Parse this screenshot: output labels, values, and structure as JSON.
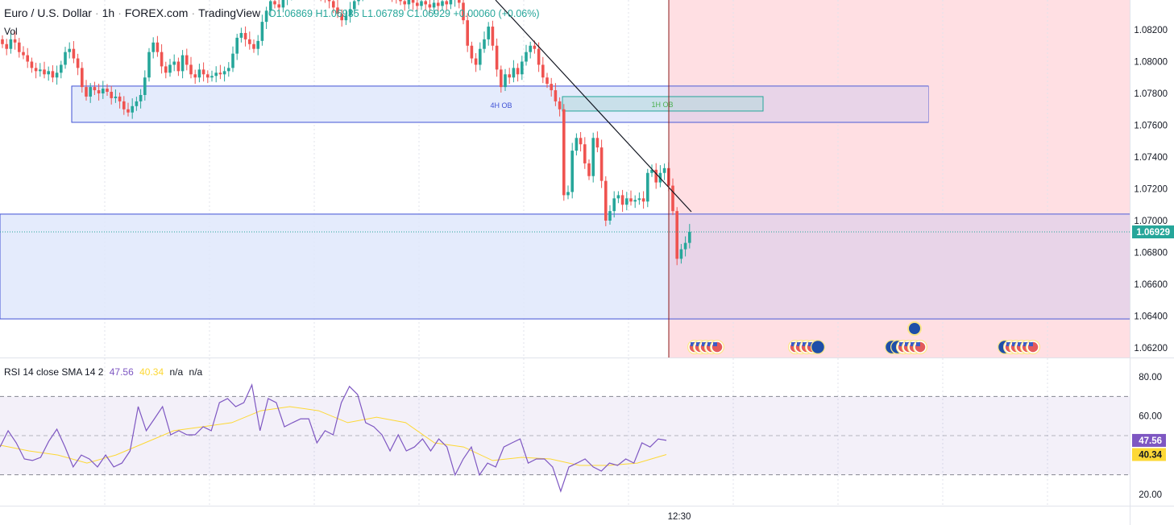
{
  "header": {
    "symbol": "Euro / U.S. Dollar",
    "interval": "1h",
    "exchange": "FOREX.com",
    "source": "TradingView",
    "ohlc": {
      "open": "O1.06869",
      "high": "H1.06935",
      "low": "L1.06789",
      "close": "C1.06929",
      "change": "+0.00060 (+0.06%)"
    },
    "volume_label": "Vol"
  },
  "rsi_legend": {
    "title": "RSI 14 close SMA 14 2",
    "rsi": "47.56",
    "sma": "40.34",
    "na1": "n/a",
    "na2": "n/a"
  },
  "colors": {
    "up": "#26a69a",
    "down": "#ef5350",
    "zone_fill": "#dfe8fb",
    "zone_border": "#3f51d5",
    "pink": "#ffdfe3",
    "rsi": "#7e57c2",
    "sma": "#fdd835",
    "ob1h_border": "#26a69a",
    "vline": "#8b1a1a"
  },
  "chart_data": [
    {
      "type": "candlestick",
      "note_series": "closes",
      "closes": [
        1.0811,
        1.0808,
        1.0814,
        1.0812,
        1.0806,
        1.0804,
        1.08,
        1.0796,
        1.0794,
        1.0795,
        1.0792,
        1.0794,
        1.079,
        1.0793,
        1.0798,
        1.0806,
        1.0808,
        1.0802,
        1.0796,
        1.0784,
        1.0778,
        1.0784,
        1.0782,
        1.078,
        1.0783,
        1.0781,
        1.0777,
        1.0778,
        1.0775,
        1.077,
        1.0768,
        1.0772,
        1.0775,
        1.0779,
        1.079,
        1.0806,
        1.0812,
        1.0806,
        1.0797,
        1.0793,
        1.0798,
        1.08,
        1.0794,
        1.0804,
        1.0798,
        1.0792,
        1.079,
        1.0795,
        1.0792,
        1.079,
        1.0791,
        1.0793,
        1.0792,
        1.0794,
        1.0796,
        1.0805,
        1.0815,
        1.0818,
        1.0814,
        1.0811,
        1.0808,
        1.0813,
        1.0825,
        1.0832,
        1.0838,
        1.0836,
        1.0834,
        1.084,
        1.0842,
        1.0844,
        1.0846,
        1.0843,
        1.0845,
        1.0848,
        1.0846,
        1.0844,
        1.0842,
        1.084,
        1.0838,
        1.0834,
        1.083,
        1.0826,
        1.0829,
        1.0833,
        1.0838,
        1.0842,
        1.0845,
        1.0848,
        1.0846,
        1.0844,
        1.0847,
        1.0849,
        1.0845,
        1.0842,
        1.084,
        1.0838,
        1.0836,
        1.0839,
        1.0837,
        1.0835,
        1.0838,
        1.0836,
        1.0834,
        1.0837,
        1.0835,
        1.0838,
        1.0836,
        1.0839,
        1.084,
        1.0837,
        1.0826,
        1.081,
        1.0802,
        1.0798,
        1.0808,
        1.0814,
        1.0822,
        1.081,
        1.0795,
        1.0784,
        1.0792,
        1.079,
        1.0796,
        1.0792,
        1.08,
        1.0806,
        1.081,
        1.0808,
        1.0798,
        1.079,
        1.0786,
        1.0782,
        1.0775,
        1.077,
        1.0716,
        1.0718,
        1.0744,
        1.0752,
        1.0748,
        1.0736,
        1.0728,
        1.0752,
        1.0746,
        1.0725,
        1.07,
        1.0706,
        1.0714,
        1.0716,
        1.071,
        1.0714,
        1.0712,
        1.0713,
        1.0714,
        1.0712,
        1.073,
        1.0732,
        1.0724,
        1.073,
        1.0733,
        1.0722,
        1.0706,
        1.0676,
        1.0682,
        1.0686,
        1.0693
      ],
      "price_ticks": [
        "1.08200",
        "1.08000",
        "1.07800",
        "1.07600",
        "1.07400",
        "1.07200",
        "1.07000",
        "1.06800",
        "1.06600",
        "1.06400",
        "1.06200"
      ],
      "last_price": "1.06929",
      "ylim": [
        1.062,
        1.084
      ],
      "zones": [
        {
          "label": "4H OB",
          "top": 1.07846,
          "bottom": 1.07618
        },
        {
          "label": "",
          "top": 1.07041,
          "bottom": 1.06382
        },
        {
          "label": "1H OB",
          "top": 1.0778,
          "bottom": 1.07689
        }
      ],
      "time_label": "12:30",
      "event_groups": [
        {
          "flags": [
            "us",
            "us",
            "us",
            "us",
            "us"
          ]
        },
        {
          "flags": [
            "us",
            "us",
            "us",
            "us",
            "eu"
          ]
        },
        {
          "flags": [
            "eu",
            "eu",
            "us",
            "us",
            "us",
            "us"
          ],
          "extra": "eu"
        },
        {
          "flags": [
            "eu",
            "us",
            "us",
            "us",
            "us",
            "us"
          ]
        }
      ]
    },
    {
      "type": "line",
      "name": "RSI 14 close SMA 14 2",
      "rsi": [
        44.2,
        52.5,
        46.3,
        38.1,
        37.3,
        38.9,
        47.1,
        53.3,
        44.2,
        34.0,
        40.1,
        38.1,
        34.0,
        40.1,
        34.0,
        36.0,
        42.2,
        64.8,
        52.5,
        58.6,
        64.8,
        50.4,
        52.5,
        50.4,
        50.4,
        54.5,
        52.5,
        66.8,
        68.9,
        64.8,
        66.8,
        75.9,
        52.5,
        68.9,
        66.8,
        54.5,
        56.6,
        58.6,
        58.6,
        46.3,
        52.5,
        50.4,
        66.8,
        75.1,
        71.0,
        56.6,
        54.5,
        50.4,
        42.2,
        50.4,
        42.2,
        44.2,
        48.3,
        42.2,
        48.3,
        44.2,
        29.9,
        38.1,
        44.2,
        29.9,
        36.0,
        34.0,
        44.2,
        46.3,
        48.3,
        36.0,
        38.1,
        38.1,
        34.0,
        21.6,
        34.0,
        36.0,
        38.1,
        34.0,
        31.9,
        36.0,
        34.8,
        38.1,
        36.0,
        46.3,
        44.2,
        48.3,
        47.56
      ],
      "sma": [
        45.1,
        42.2,
        40.1,
        36.0,
        40.1,
        46.3,
        52.5,
        54.5,
        56.6,
        62.7,
        64.8,
        62.7,
        56.6,
        59.4,
        56.6,
        46.3,
        44.2,
        37.3,
        38.9,
        38.1,
        34.8,
        34.8,
        36.0,
        40.34
      ],
      "ticks": [
        "80.00",
        "60.00",
        "20.00"
      ],
      "bands": [
        70,
        50,
        30
      ],
      "ylim": [
        20,
        80
      ],
      "rsi_label": "47.56",
      "sma_label": "40.34"
    }
  ]
}
